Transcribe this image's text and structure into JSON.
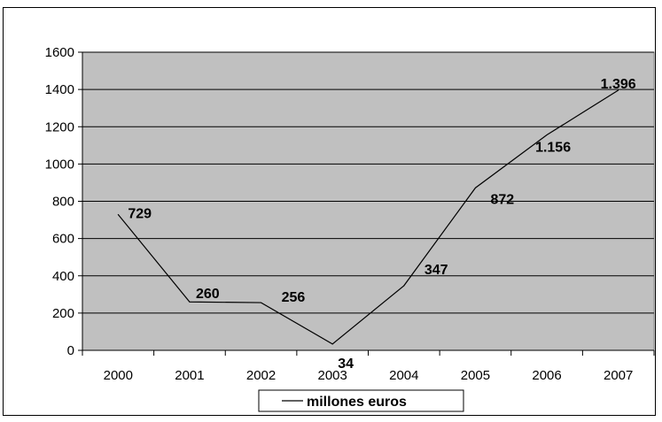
{
  "chart_data": {
    "type": "line",
    "categories": [
      "2000",
      "2001",
      "2002",
      "2003",
      "2004",
      "2005",
      "2006",
      "2007"
    ],
    "series": [
      {
        "name": "millones euros",
        "values": [
          729,
          260,
          256,
          34,
          347,
          872,
          1156,
          1396
        ],
        "labels": [
          "729",
          "260",
          "256",
          "34",
          "347",
          "872",
          "1.156",
          "1.396"
        ]
      }
    ],
    "ylim": [
      0,
      1600
    ],
    "yticks": [
      "0",
      "200",
      "400",
      "600",
      "800",
      "1000",
      "1200",
      "1400",
      "1600"
    ],
    "grid": true,
    "legend_position": "bottom",
    "colors": {
      "plot_background": "#c0c0c0",
      "line": "#000000",
      "grid": "#000000"
    }
  }
}
